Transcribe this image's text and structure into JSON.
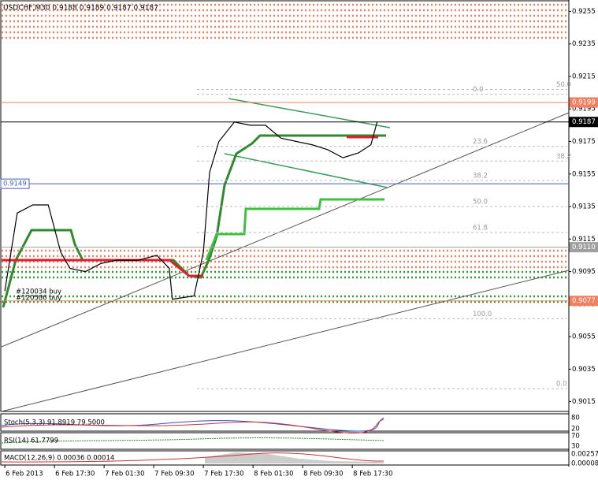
{
  "chart_data": {
    "type": "price-line",
    "title": "USDCHF,M30  0.9188 0.9189 0.9187 0.9187",
    "x": [
      0,
      4,
      9,
      14,
      18,
      21,
      26,
      31,
      36,
      43,
      49,
      53,
      54,
      61,
      64,
      66,
      69,
      74,
      79,
      84,
      89,
      94,
      99,
      104,
      109,
      114,
      118,
      120
    ],
    "values": [
      0.9083,
      0.9131,
      0.9136,
      0.9136,
      0.9107,
      0.9097,
      0.9095,
      0.91,
      0.9102,
      0.9102,
      0.9105,
      0.9097,
      0.9078,
      0.908,
      0.9107,
      0.9156,
      0.9175,
      0.9187,
      0.9185,
      0.9185,
      0.9177,
      0.9175,
      0.9173,
      0.917,
      0.9165,
      0.9168,
      0.9173,
      0.9187
    ],
    "color": "#000000",
    "xlim": [
      -1.3,
      181.8
    ],
    "xticks": [
      {
        "value": 0,
        "label": "6 Feb 2013"
      },
      {
        "value": 16,
        "label": "6 Feb 17:30"
      },
      {
        "value": 32,
        "label": "7 Feb 01:30"
      },
      {
        "value": 48,
        "label": "7 Feb 09:30"
      },
      {
        "value": 64,
        "label": "7 Feb 17:30"
      },
      {
        "value": 80,
        "label": "8 Feb 01:30"
      },
      {
        "value": 96,
        "label": "8 Feb 09:30"
      },
      {
        "value": 112,
        "label": "8 Feb 17:30"
      }
    ],
    "ylim": [
      0.9009,
      0.9262
    ],
    "yticks": [
      0.9255,
      0.9235,
      0.9215,
      0.9195,
      0.9175,
      0.9155,
      0.9135,
      0.9115,
      0.9095,
      0.9075,
      0.9055,
      0.9035,
      0.9015
    ],
    "levels": [
      {
        "value": 0.9199,
        "label": "0.9199",
        "color": "#f08060"
      },
      {
        "value": 0.9187,
        "label": "0.9187",
        "color": "#000000"
      },
      {
        "value": 0.9149,
        "label": "0.9149",
        "color": "#4060c0"
      },
      {
        "value": 0.911,
        "label": "0.9110",
        "color": "#a0a0a0"
      },
      {
        "value": 0.9077,
        "label": "0.9077",
        "color": "#f08060"
      }
    ],
    "fibo": [
      {
        "value": 0.9204,
        "label": "0.0"
      },
      {
        "value": 0.9172,
        "label": "23.6"
      },
      {
        "value": 0.9151,
        "label": "38.2"
      },
      {
        "value": 0.9135,
        "label": "50.0"
      },
      {
        "value": 0.9119,
        "label": "61.8"
      },
      {
        "value": 0.9066,
        "label": "100.0"
      }
    ],
    "fibo2": [
      {
        "value": 0.9207,
        "label": "50.0"
      },
      {
        "value": 0.9163,
        "label": "38.2"
      },
      {
        "value": 0.9023,
        "label": "0.0"
      }
    ],
    "orders": [
      "#120034 buy",
      "#120586 buy"
    ],
    "indicators": [
      {
        "label": "Stoch(5,3,3) 91.8919 79.5000",
        "ticks": [
          "80",
          "20"
        ]
      },
      {
        "label": "RSI(14) 61.7799",
        "ticks": [
          "70",
          "30"
        ]
      },
      {
        "label": "MACD(12,26,9) 0.00036 0.00014",
        "ticks": [
          "0.00257",
          "0.00008"
        ]
      }
    ]
  }
}
